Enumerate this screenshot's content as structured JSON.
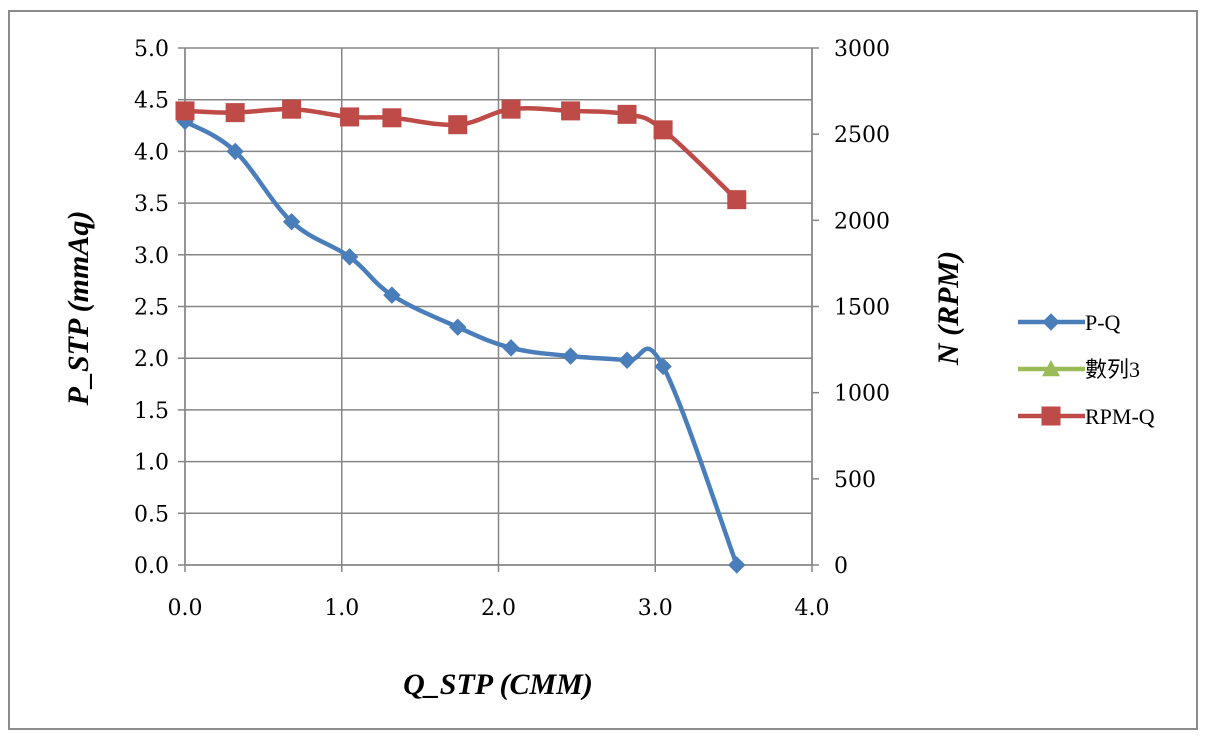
{
  "chart_data": {
    "type": "line",
    "xlabel": "Q_STP (CMM)",
    "ylabel": "P_STP (mmAq)",
    "y2label": "N (RPM)",
    "xlim": [
      0.0,
      4.0
    ],
    "ylim": [
      0.0,
      5.0
    ],
    "y2lim": [
      0,
      3000
    ],
    "x_ticks": [
      "0.0",
      "1.0",
      "2.0",
      "3.0",
      "4.0"
    ],
    "y_ticks": [
      "0.0",
      "0.5",
      "1.0",
      "1.5",
      "2.0",
      "2.5",
      "3.0",
      "3.5",
      "4.0",
      "4.5",
      "5.0"
    ],
    "y2_ticks": [
      "0",
      "500",
      "1000",
      "1500",
      "2000",
      "2500",
      "3000"
    ],
    "grid": true,
    "legend_position": "right",
    "series": [
      {
        "name": "P-Q",
        "axis": "left",
        "color": "#4a7ebb",
        "marker": "diamond",
        "x": [
          0.0,
          0.32,
          0.68,
          1.05,
          1.32,
          1.74,
          2.08,
          2.46,
          2.82,
          3.05,
          3.52
        ],
        "y": [
          4.29,
          4.0,
          3.32,
          2.98,
          2.61,
          2.3,
          2.1,
          2.02,
          1.98,
          1.92,
          0.0
        ]
      },
      {
        "name": "數列3",
        "axis": "right",
        "color": "#9bbb59",
        "marker": "triangle",
        "x": [],
        "y": []
      },
      {
        "name": "RPM-Q",
        "axis": "right",
        "color": "#be4b48",
        "marker": "square",
        "x": [
          0.0,
          0.32,
          0.68,
          1.05,
          1.32,
          1.74,
          2.08,
          2.46,
          2.82,
          3.05,
          3.52
        ],
        "y": [
          2635,
          2625,
          2645,
          2600,
          2595,
          2555,
          2645,
          2635,
          2615,
          2525,
          2120
        ]
      }
    ]
  }
}
